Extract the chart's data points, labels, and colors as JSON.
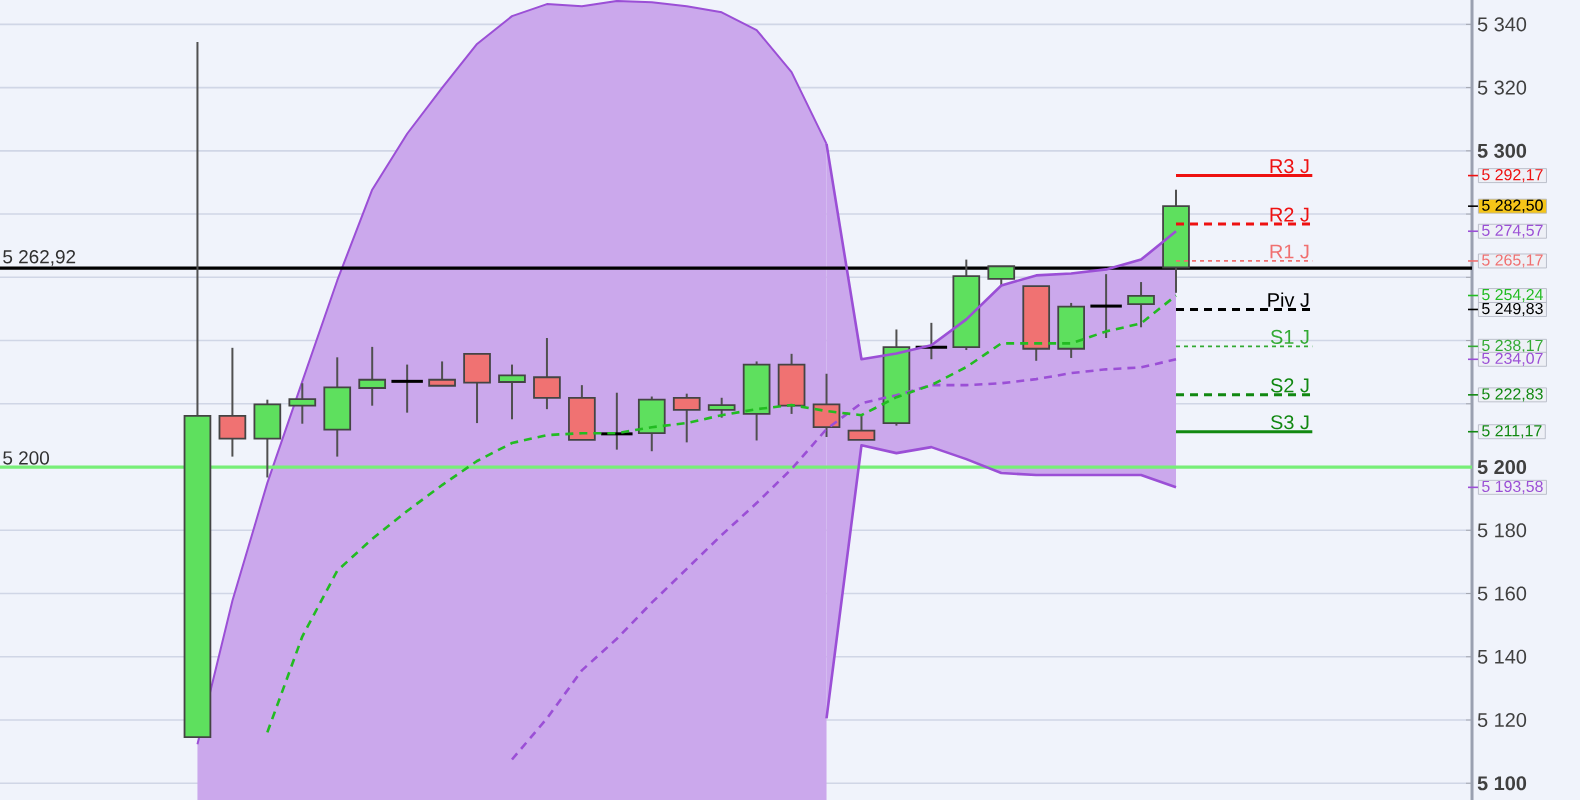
{
  "chart_data": {
    "type": "candlestick",
    "categories": [
      null,
      null,
      null,
      null,
      null,
      null,
      null,
      null,
      null,
      null,
      null,
      null,
      null,
      null,
      null,
      null,
      null,
      null,
      null,
      null,
      null,
      null,
      null,
      null,
      null,
      null,
      null,
      null,
      null
    ],
    "ohlc": [
      [
        5114.6,
        5334.4,
        5114.6,
        5216.2
      ],
      [
        5216.2,
        5237.7,
        5203.3,
        5209.0
      ],
      [
        5209.0,
        5221.3,
        5196.7,
        5219.8
      ],
      [
        5219.4,
        5226.5,
        5213.7,
        5221.5
      ],
      [
        5211.8,
        5234.7,
        5203.3,
        5225.2
      ],
      [
        5225.0,
        5238.0,
        5219.4,
        5227.6
      ],
      [
        5227.1,
        5232.4,
        5217.2,
        5227.1
      ],
      [
        5227.6,
        5233.4,
        5225.7,
        5225.7
      ],
      [
        5235.8,
        5235.8,
        5213.9,
        5226.7
      ],
      [
        5226.9,
        5232.4,
        5215.1,
        5229.0
      ],
      [
        5228.4,
        5240.8,
        5218.3,
        5221.9
      ],
      [
        5221.9,
        5225.9,
        5208.6,
        5208.6
      ],
      [
        5210.5,
        5223.5,
        5205.5,
        5210.5
      ],
      [
        5210.7,
        5222.3,
        5205.0,
        5221.3
      ],
      [
        5221.9,
        5223.2,
        5207.8,
        5218.1
      ],
      [
        5218.1,
        5221.9,
        5215.6,
        5219.6
      ],
      [
        5216.8,
        5233.4,
        5208.4,
        5232.4
      ],
      [
        5232.4,
        5235.8,
        5216.8,
        5219.4
      ],
      [
        5219.8,
        5229.5,
        5209.5,
        5212.6
      ],
      [
        5211.5,
        5216.2,
        5208.6,
        5208.6
      ],
      [
        5213.9,
        5243.5,
        5213.1,
        5237.9
      ],
      [
        5237.9,
        5245.6,
        5234.1,
        5237.9
      ],
      [
        5237.9,
        5265.6,
        5237.0,
        5260.4
      ],
      [
        5259.5,
        5263.5,
        5257.2,
        5263.5
      ],
      [
        5257.2,
        5257.2,
        5233.6,
        5237.4
      ],
      [
        5237.4,
        5251.9,
        5234.5,
        5250.7
      ],
      [
        5250.9,
        5261.0,
        5240.8,
        5250.9
      ],
      [
        5251.5,
        5258.5,
        5244.2,
        5254.1
      ],
      [
        5263.1,
        5287.7,
        5255.1,
        5282.5
      ]
    ],
    "colors": [
      "#5ee05e",
      "#f07272",
      "#5ee05e",
      "#5ee05e",
      "#5ee05e",
      "#5ee05e",
      "#000000",
      "#f07272",
      "#f07272",
      "#5ee05e",
      "#f07272",
      "#f07272",
      "#000000",
      "#5ee05e",
      "#f07272",
      "#5ee05e",
      "#5ee05e",
      "#f07272",
      "#f07272",
      "#f07272",
      "#5ee05e",
      "#000000",
      "#5ee05e",
      "#5ee05e",
      "#f07272",
      "#5ee05e",
      "#000000",
      "#5ee05e",
      "#5ee05e"
    ],
    "series": [
      {
        "type": "area",
        "color": "#cba8ec",
        "values": [
          5112.3,
          5157.7,
          5195.0,
          5227.1,
          5259.0,
          5287.7,
          5305.4,
          5319.9,
          5333.8,
          5342.6,
          5346.4,
          5345.7,
          5347.4,
          5347.0,
          5345.7,
          5343.8,
          5338.2,
          5324.9,
          5302.2,
          null,
          null,
          null,
          null,
          null,
          null,
          null,
          null,
          null,
          null
        ]
      },
      {
        "type": "line",
        "color": "#9b4fd6",
        "line_style": "dashed",
        "values": [
          null,
          null,
          null,
          null,
          null,
          null,
          null,
          null,
          null,
          5107.5,
          5120.5,
          5135.7,
          5145.7,
          5157.1,
          5167.8,
          5178.5,
          5188.6,
          5199.4,
          5212.0,
          5220.2,
          5222.7,
          5225.9,
          5225.9,
          5226.5,
          5227.8,
          5229.7,
          5230.9,
          5231.5,
          5234.07
        ],
        "upper": [
          null,
          null,
          null,
          null,
          null,
          null,
          null,
          null,
          null,
          null,
          null,
          null,
          null,
          null,
          null,
          null,
          null,
          null,
          5302.2,
          5234.1,
          5235.9,
          5238.5,
          5246.7,
          5257.4,
          5260.6,
          5261.2,
          5262.5,
          5265.6,
          5274.57
        ],
        "lower": [
          null,
          null,
          null,
          null,
          null,
          null,
          null,
          null,
          null,
          null,
          null,
          null,
          null,
          null,
          null,
          null,
          null,
          null,
          5120.5,
          5206.9,
          5204.4,
          5206.3,
          5202.5,
          5198.1,
          5197.5,
          5197.5,
          5197.5,
          5197.5,
          5193.58
        ]
      },
      {
        "type": "line",
        "color": "#9b4fd6",
        "line_style": "solid",
        "values": [
          null,
          null,
          null,
          null,
          null,
          null,
          null,
          null,
          null,
          null,
          null,
          null,
          null,
          null,
          null,
          null,
          null,
          null,
          5302.2,
          5234.1,
          5235.9,
          5238.5,
          5246.7,
          5257.4,
          5260.6,
          5261.2,
          5262.5,
          5265.6,
          5274.57
        ]
      },
      {
        "type": "line",
        "color": "#9b4fd6",
        "line_style": "solid",
        "values": [
          null,
          null,
          null,
          null,
          null,
          null,
          null,
          null,
          null,
          null,
          null,
          null,
          null,
          null,
          null,
          null,
          null,
          null,
          5120.5,
          5206.9,
          5204.4,
          5206.3,
          5202.5,
          5198.1,
          5197.5,
          5197.5,
          5197.5,
          5197.5,
          5193.58
        ]
      },
      {
        "type": "line",
        "color": "#22bb22",
        "line_style": "dashed",
        "values": [
          null,
          null,
          5116.1,
          5146.4,
          5167.2,
          5177.3,
          5186.1,
          5194.3,
          5201.9,
          5207.6,
          5210.1,
          5210.7,
          5210.7,
          5212.6,
          5213.9,
          5216.4,
          5218.3,
          5219.6,
          5217.7,
          5216.4,
          5222.1,
          5225.9,
          5231.6,
          5239.1,
          5239.1,
          5239.1,
          5242.9,
          5245.4,
          5254.24
        ]
      }
    ],
    "ylim": [
      5094.7,
      5347.7
    ],
    "yticks": [
      {
        "value": 5100,
        "label": "5 100"
      },
      {
        "value": 5120,
        "label": "5 120"
      },
      {
        "value": 5140,
        "label": "5 140"
      },
      {
        "value": 5160,
        "label": "5 160"
      },
      {
        "value": 5180,
        "label": "5 180"
      },
      {
        "value": 5200,
        "label": "5 200"
      },
      {
        "value": 5220,
        "label": null
      },
      {
        "value": 5240,
        "label": null
      },
      {
        "value": 5260,
        "label": null
      },
      {
        "value": 5280,
        "label": null
      },
      {
        "value": 5300,
        "label": "5 300"
      },
      {
        "value": 5320,
        "label": "5 320"
      },
      {
        "value": 5340,
        "label": "5 340"
      }
    ],
    "grid": "y",
    "tick_labels": "y",
    "ref_lines": [
      {
        "axis": "y",
        "value": 5262.92,
        "label": "5 262,92",
        "color": "#000000"
      },
      {
        "axis": "y",
        "value": 5200,
        "label": "5 200",
        "color": "#77ee77"
      },
      {
        "axis": "y",
        "value": 5292.17,
        "label": "R3 J",
        "color": "#ee1111",
        "line_style": "solid"
      },
      {
        "axis": "y",
        "value": 5276.83,
        "label": "R2 J",
        "color": "#ee1111",
        "line_style": "dashed"
      },
      {
        "axis": "y",
        "value": 5265.17,
        "label": "R1 J",
        "color": "#f07070",
        "line_style": "dotted"
      },
      {
        "axis": "y",
        "value": 5249.83,
        "label": "Piv J",
        "color": "#000000",
        "line_style": "dashed"
      },
      {
        "axis": "y",
        "value": 5238.17,
        "label": "S1 J",
        "color": "#33aa33",
        "line_style": "dotted"
      },
      {
        "axis": "y",
        "value": 5222.83,
        "label": "S2 J",
        "color": "#118811",
        "line_style": "dashed"
      },
      {
        "axis": "y",
        "value": 5211.17,
        "label": "S3 J",
        "color": "#118811",
        "line_style": "solid"
      }
    ],
    "y2lim": [
      5094.7,
      5347.7
    ],
    "y2ticks": [
      {
        "value": 5292.17,
        "label": "5 292,17"
      },
      {
        "value": 5282.5,
        "label": "5 282,50"
      },
      {
        "value": 5274.57,
        "label": "5 274,57"
      },
      {
        "value": 5265.17,
        "label": "5 265,17"
      },
      {
        "value": 5254.24,
        "label": "5 254,24"
      },
      {
        "value": 5249.83,
        "label": "5 249,83"
      },
      {
        "value": 5238.17,
        "label": "5 238,17"
      },
      {
        "value": 5234.07,
        "label": "5 234,07"
      },
      {
        "value": 5222.83,
        "label": "5 222,83"
      },
      {
        "value": 5211.17,
        "label": "5 211,17"
      },
      {
        "value": 5193.58,
        "label": "5 193,58"
      }
    ]
  }
}
